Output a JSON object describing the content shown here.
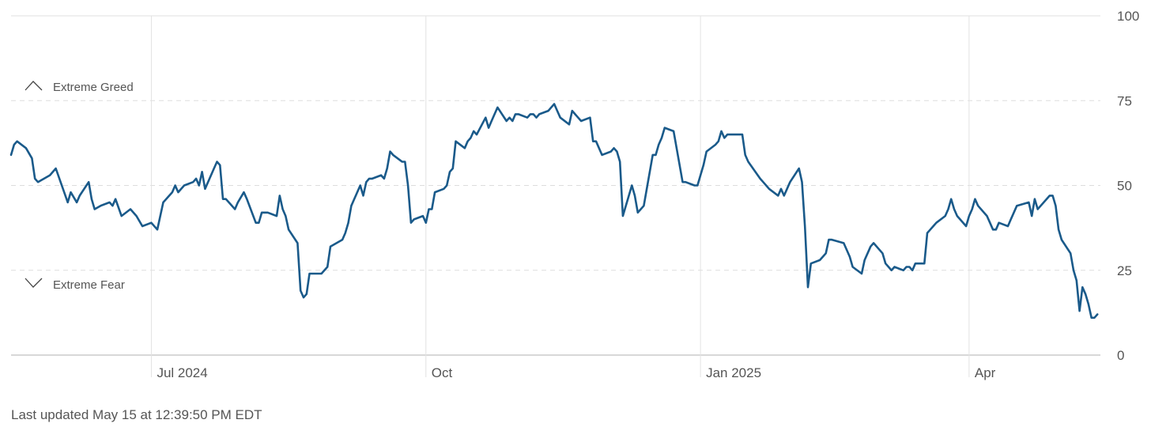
{
  "footer": {
    "last_updated": "Last updated May 15 at 12:39:50 PM EDT"
  },
  "chart_data": {
    "type": "line",
    "title": "",
    "xlabel": "",
    "ylabel": "",
    "ylim": [
      0,
      100
    ],
    "grid": true,
    "colors": {
      "line": "#1a5a8a",
      "grid_solid": "#e2e2e2",
      "grid_dashed": "#dddddd",
      "axis": "#cccccc",
      "tick_text": "#555555"
    },
    "y_ticks": [
      {
        "value": 100,
        "label": "100"
      },
      {
        "value": 75,
        "label": "75"
      },
      {
        "value": 50,
        "label": "50"
      },
      {
        "value": 25,
        "label": "25"
      },
      {
        "value": 0,
        "label": "0"
      }
    ],
    "x_ticks": [
      {
        "date": "2024-07-01",
        "label": "Jul 2024"
      },
      {
        "date": "2024-10-01",
        "label": "Oct"
      },
      {
        "date": "2025-01-01",
        "label": "Jan 2025"
      },
      {
        "date": "2025-04-01",
        "label": "Apr"
      }
    ],
    "x_range": [
      "2024-05-15",
      "2025-05-15"
    ],
    "annotations": [
      {
        "label": "Extreme Greed",
        "icon": "chevron-up-icon",
        "value": 75
      },
      {
        "label": "Extreme Fear",
        "icon": "chevron-down-icon",
        "value": 25
      }
    ],
    "series": [
      {
        "values": [
          [
            "2024-05-15",
            59
          ],
          [
            "2024-05-16",
            62
          ],
          [
            "2024-05-17",
            63
          ],
          [
            "2024-05-20",
            61
          ],
          [
            "2024-05-22",
            58
          ],
          [
            "2024-05-23",
            52
          ],
          [
            "2024-05-24",
            51
          ],
          [
            "2024-05-28",
            53
          ],
          [
            "2024-05-30",
            55
          ],
          [
            "2024-06-03",
            45
          ],
          [
            "2024-06-04",
            48
          ],
          [
            "2024-06-06",
            45
          ],
          [
            "2024-06-07",
            47
          ],
          [
            "2024-06-10",
            51
          ],
          [
            "2024-06-11",
            46
          ],
          [
            "2024-06-12",
            43
          ],
          [
            "2024-06-14",
            44
          ],
          [
            "2024-06-17",
            45
          ],
          [
            "2024-06-18",
            44
          ],
          [
            "2024-06-19",
            46
          ],
          [
            "2024-06-21",
            41
          ],
          [
            "2024-06-24",
            43
          ],
          [
            "2024-06-26",
            41
          ],
          [
            "2024-06-28",
            38
          ],
          [
            "2024-07-01",
            39
          ],
          [
            "2024-07-03",
            37
          ],
          [
            "2024-07-05",
            45
          ],
          [
            "2024-07-08",
            48
          ],
          [
            "2024-07-09",
            50
          ],
          [
            "2024-07-10",
            48
          ],
          [
            "2024-07-12",
            50
          ],
          [
            "2024-07-15",
            51
          ],
          [
            "2024-07-16",
            52
          ],
          [
            "2024-07-17",
            50
          ],
          [
            "2024-07-18",
            54
          ],
          [
            "2024-07-19",
            49
          ],
          [
            "2024-07-22",
            55
          ],
          [
            "2024-07-23",
            57
          ],
          [
            "2024-07-24",
            56
          ],
          [
            "2024-07-25",
            46
          ],
          [
            "2024-07-26",
            46
          ],
          [
            "2024-07-29",
            43
          ],
          [
            "2024-07-30",
            45
          ],
          [
            "2024-08-01",
            48
          ],
          [
            "2024-08-02",
            46
          ],
          [
            "2024-08-05",
            39
          ],
          [
            "2024-08-06",
            39
          ],
          [
            "2024-08-07",
            42
          ],
          [
            "2024-08-09",
            42
          ],
          [
            "2024-08-12",
            41
          ],
          [
            "2024-08-13",
            47
          ],
          [
            "2024-08-14",
            43
          ],
          [
            "2024-08-15",
            41
          ],
          [
            "2024-08-16",
            37
          ],
          [
            "2024-08-19",
            33
          ],
          [
            "2024-08-20",
            19
          ],
          [
            "2024-08-21",
            17
          ],
          [
            "2024-08-22",
            18
          ],
          [
            "2024-08-23",
            24
          ],
          [
            "2024-08-26",
            24
          ],
          [
            "2024-08-27",
            24
          ],
          [
            "2024-08-28",
            25
          ],
          [
            "2024-08-29",
            26
          ],
          [
            "2024-08-30",
            32
          ],
          [
            "2024-09-03",
            34
          ],
          [
            "2024-09-04",
            36
          ],
          [
            "2024-09-05",
            39
          ],
          [
            "2024-09-06",
            44
          ],
          [
            "2024-09-09",
            50
          ],
          [
            "2024-09-10",
            47
          ],
          [
            "2024-09-11",
            51
          ],
          [
            "2024-09-12",
            52
          ],
          [
            "2024-09-13",
            52
          ],
          [
            "2024-09-16",
            53
          ],
          [
            "2024-09-17",
            52
          ],
          [
            "2024-09-18",
            55
          ],
          [
            "2024-09-19",
            60
          ],
          [
            "2024-09-20",
            59
          ],
          [
            "2024-09-23",
            57
          ],
          [
            "2024-09-24",
            57
          ],
          [
            "2024-09-25",
            50
          ],
          [
            "2024-09-26",
            39
          ],
          [
            "2024-09-27",
            40
          ],
          [
            "2024-09-30",
            41
          ],
          [
            "2024-10-01",
            39
          ],
          [
            "2024-10-02",
            43
          ],
          [
            "2024-10-03",
            43
          ],
          [
            "2024-10-04",
            48
          ],
          [
            "2024-10-07",
            49
          ],
          [
            "2024-10-08",
            50
          ],
          [
            "2024-10-09",
            54
          ],
          [
            "2024-10-10",
            55
          ],
          [
            "2024-10-11",
            63
          ],
          [
            "2024-10-14",
            61
          ],
          [
            "2024-10-15",
            63
          ],
          [
            "2024-10-16",
            64
          ],
          [
            "2024-10-17",
            66
          ],
          [
            "2024-10-18",
            65
          ],
          [
            "2024-10-21",
            70
          ],
          [
            "2024-10-22",
            67
          ],
          [
            "2024-10-23",
            69
          ],
          [
            "2024-10-24",
            71
          ],
          [
            "2024-10-25",
            73
          ],
          [
            "2024-10-28",
            69
          ],
          [
            "2024-10-29",
            70
          ],
          [
            "2024-10-30",
            69
          ],
          [
            "2024-10-31",
            71
          ],
          [
            "2024-11-01",
            71
          ],
          [
            "2024-11-04",
            70
          ],
          [
            "2024-11-05",
            71
          ],
          [
            "2024-11-06",
            71
          ],
          [
            "2024-11-07",
            70
          ],
          [
            "2024-11-08",
            71
          ],
          [
            "2024-11-11",
            72
          ],
          [
            "2024-11-12",
            73
          ],
          [
            "2024-11-13",
            74
          ],
          [
            "2024-11-14",
            72
          ],
          [
            "2024-11-15",
            70
          ],
          [
            "2024-11-18",
            68
          ],
          [
            "2024-11-19",
            72
          ],
          [
            "2024-11-20",
            71
          ],
          [
            "2024-11-21",
            70
          ],
          [
            "2024-11-22",
            69
          ],
          [
            "2024-11-25",
            70
          ],
          [
            "2024-11-26",
            63
          ],
          [
            "2024-11-27",
            63
          ],
          [
            "2024-11-29",
            59
          ],
          [
            "2024-12-02",
            60
          ],
          [
            "2024-12-03",
            61
          ],
          [
            "2024-12-04",
            60
          ],
          [
            "2024-12-05",
            57
          ],
          [
            "2024-12-06",
            41
          ],
          [
            "2024-12-09",
            50
          ],
          [
            "2024-12-10",
            47
          ],
          [
            "2024-12-11",
            42
          ],
          [
            "2024-12-12",
            43
          ],
          [
            "2024-12-13",
            44
          ],
          [
            "2024-12-16",
            59
          ],
          [
            "2024-12-17",
            59
          ],
          [
            "2024-12-18",
            62
          ],
          [
            "2024-12-19",
            64
          ],
          [
            "2024-12-20",
            67
          ],
          [
            "2024-12-23",
            66
          ],
          [
            "2024-12-24",
            61
          ],
          [
            "2024-12-26",
            51
          ],
          [
            "2024-12-27",
            51
          ],
          [
            "2024-12-30",
            50
          ],
          [
            "2024-12-31",
            50
          ],
          [
            "2025-01-02",
            56
          ],
          [
            "2025-01-03",
            60
          ],
          [
            "2025-01-06",
            62
          ],
          [
            "2025-01-07",
            63
          ],
          [
            "2025-01-08",
            66
          ],
          [
            "2025-01-09",
            64
          ],
          [
            "2025-01-10",
            65
          ],
          [
            "2025-01-13",
            65
          ],
          [
            "2025-01-14",
            65
          ],
          [
            "2025-01-15",
            65
          ],
          [
            "2025-01-16",
            59
          ],
          [
            "2025-01-17",
            57
          ],
          [
            "2025-01-21",
            52
          ],
          [
            "2025-01-22",
            51
          ],
          [
            "2025-01-23",
            50
          ],
          [
            "2025-01-24",
            49
          ],
          [
            "2025-01-27",
            47
          ],
          [
            "2025-01-28",
            49
          ],
          [
            "2025-01-29",
            47
          ],
          [
            "2025-01-30",
            49
          ],
          [
            "2025-01-31",
            51
          ],
          [
            "2025-02-03",
            55
          ],
          [
            "2025-02-04",
            51
          ],
          [
            "2025-02-05",
            38
          ],
          [
            "2025-02-06",
            20
          ],
          [
            "2025-02-07",
            27
          ],
          [
            "2025-02-10",
            28
          ],
          [
            "2025-02-11",
            29
          ],
          [
            "2025-02-12",
            30
          ],
          [
            "2025-02-13",
            34
          ],
          [
            "2025-02-14",
            34
          ],
          [
            "2025-02-18",
            33
          ],
          [
            "2025-02-19",
            31
          ],
          [
            "2025-02-20",
            29
          ],
          [
            "2025-02-21",
            26
          ],
          [
            "2025-02-24",
            24
          ],
          [
            "2025-02-25",
            28
          ],
          [
            "2025-02-26",
            30
          ],
          [
            "2025-02-27",
            32
          ],
          [
            "2025-02-28",
            33
          ],
          [
            "2025-03-03",
            30
          ],
          [
            "2025-03-04",
            27
          ],
          [
            "2025-03-05",
            26
          ],
          [
            "2025-03-06",
            25
          ],
          [
            "2025-03-07",
            26
          ],
          [
            "2025-03-10",
            25
          ],
          [
            "2025-03-11",
            26
          ],
          [
            "2025-03-12",
            26
          ],
          [
            "2025-03-13",
            25
          ],
          [
            "2025-03-14",
            27
          ],
          [
            "2025-03-17",
            27
          ],
          [
            "2025-03-18",
            36
          ],
          [
            "2025-03-19",
            37
          ],
          [
            "2025-03-20",
            38
          ],
          [
            "2025-03-21",
            39
          ],
          [
            "2025-03-24",
            41
          ],
          [
            "2025-03-25",
            43
          ],
          [
            "2025-03-26",
            46
          ],
          [
            "2025-03-27",
            43
          ],
          [
            "2025-03-28",
            41
          ],
          [
            "2025-03-31",
            38
          ],
          [
            "2025-04-01",
            41
          ],
          [
            "2025-04-02",
            43
          ],
          [
            "2025-04-03",
            46
          ],
          [
            "2025-04-04",
            44
          ],
          [
            "2025-04-07",
            41
          ],
          [
            "2025-04-08",
            39
          ],
          [
            "2025-04-09",
            37
          ],
          [
            "2025-04-10",
            37
          ],
          [
            "2025-04-11",
            39
          ],
          [
            "2025-04-14",
            38
          ],
          [
            "2025-04-15",
            40
          ],
          [
            "2025-04-16",
            42
          ],
          [
            "2025-04-17",
            44
          ],
          [
            "2025-04-21",
            45
          ],
          [
            "2025-04-22",
            41
          ],
          [
            "2025-04-23",
            46
          ],
          [
            "2025-04-24",
            43
          ],
          [
            "2025-04-25",
            44
          ],
          [
            "2025-04-28",
            47
          ],
          [
            "2025-04-29",
            47
          ],
          [
            "2025-04-30",
            44
          ],
          [
            "2025-05-01",
            37
          ],
          [
            "2025-05-02",
            34
          ],
          [
            "2025-05-05",
            30
          ],
          [
            "2025-05-06",
            25
          ],
          [
            "2025-05-07",
            22
          ],
          [
            "2025-05-08",
            13
          ],
          [
            "2025-05-09",
            20
          ],
          [
            "2025-05-10",
            18
          ],
          [
            "2025-05-11",
            15
          ],
          [
            "2025-05-12",
            11
          ],
          [
            "2025-05-13",
            11
          ],
          [
            "2025-05-14",
            12
          ]
        ]
      }
    ]
  }
}
